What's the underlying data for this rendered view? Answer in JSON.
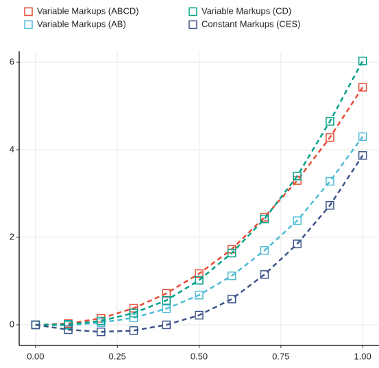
{
  "chart_data": {
    "type": "line",
    "x": [
      0,
      0.1,
      0.2,
      0.3,
      0.4,
      0.5,
      0.6,
      0.7,
      0.8,
      0.9,
      1.0
    ],
    "series": [
      {
        "name": "Variable Markups (ABCD)",
        "color": "#e64b35",
        "values": [
          0,
          0.03,
          0.15,
          0.38,
          0.72,
          1.17,
          1.73,
          2.46,
          3.3,
          4.28,
          5.43
        ]
      },
      {
        "name": "Variable Markups (AB)",
        "color": "#4dbbd5",
        "values": [
          0,
          -0.01,
          0.05,
          0.16,
          0.37,
          0.68,
          1.12,
          1.7,
          2.38,
          3.28,
          4.3
        ]
      },
      {
        "name": "Variable Markups (CD)",
        "color": "#00a087",
        "values": [
          0,
          0.01,
          0.09,
          0.27,
          0.56,
          1.02,
          1.64,
          2.42,
          3.4,
          4.65,
          6.03
        ]
      },
      {
        "name": "Constant Markups (CES)",
        "color": "#3c5488",
        "values": [
          0,
          -0.11,
          -0.16,
          -0.13,
          0.0,
          0.22,
          0.59,
          1.15,
          1.85,
          2.73,
          3.87
        ]
      }
    ],
    "xlim": [
      -0.05,
      1.05
    ],
    "ylim": [
      -0.47,
      6.25
    ],
    "xticks": [
      {
        "value": 0,
        "label": "0.00"
      },
      {
        "value": 0.25,
        "label": "0.25"
      },
      {
        "value": 0.5,
        "label": "0.50"
      },
      {
        "value": 0.75,
        "label": "0.75"
      },
      {
        "value": 1,
        "label": "1.00"
      }
    ],
    "yticks": [
      0,
      2,
      4,
      6
    ],
    "grid": true,
    "legend": "top"
  }
}
